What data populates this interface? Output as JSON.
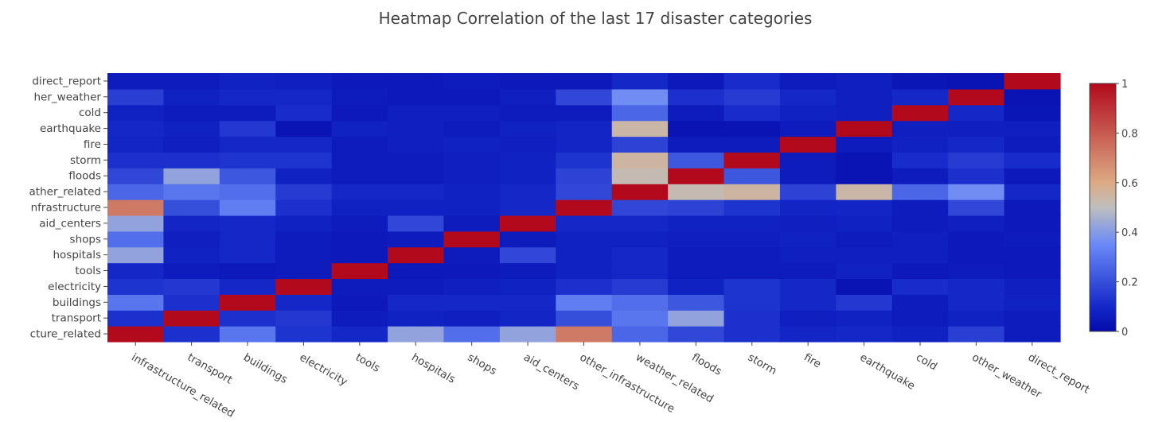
{
  "chart_data": {
    "type": "heatmap",
    "title": "Heatmap Correlation of the last 17 disaster categories",
    "x_categories": [
      "infrastructure_related",
      "transport",
      "buildings",
      "electricity",
      "tools",
      "hospitals",
      "shops",
      "aid_centers",
      "other_infrastructure",
      "weather_related",
      "floods",
      "storm",
      "fire",
      "earthquake",
      "cold",
      "other_weather",
      "direct_report"
    ],
    "y_categories": [
      "infrastructure_related",
      "transport",
      "buildings",
      "electricity",
      "tools",
      "hospitals",
      "shops",
      "aid_centers",
      "other_infrastructure",
      "weather_related",
      "floods",
      "storm",
      "fire",
      "earthquake",
      "cold",
      "other_weather",
      "direct_report"
    ],
    "y_tick_labels": [
      "cture_related",
      "transport",
      "buildings",
      "electricity",
      "tools",
      "hospitals",
      "shops",
      "aid_centers",
      "nfrastructure",
      "ather_related",
      "floods",
      "storm",
      "fire",
      "earthquake",
      "cold",
      "her_weather",
      "direct_report"
    ],
    "z": [
      [
        1.0,
        0.12,
        0.3,
        0.13,
        0.1,
        0.42,
        0.28,
        0.42,
        0.72,
        0.26,
        0.18,
        0.12,
        0.09,
        0.1,
        0.08,
        0.16,
        0.06
      ],
      [
        0.12,
        1.0,
        0.12,
        0.14,
        0.06,
        0.08,
        0.07,
        0.09,
        0.2,
        0.3,
        0.42,
        0.12,
        0.07,
        0.08,
        0.06,
        0.08,
        0.06
      ],
      [
        0.3,
        0.12,
        1.0,
        0.1,
        0.05,
        0.1,
        0.1,
        0.1,
        0.32,
        0.28,
        0.22,
        0.13,
        0.1,
        0.14,
        0.06,
        0.1,
        0.08
      ],
      [
        0.13,
        0.14,
        0.1,
        1.0,
        0.06,
        0.06,
        0.07,
        0.08,
        0.12,
        0.15,
        0.08,
        0.13,
        0.1,
        0.03,
        0.11,
        0.1,
        0.07
      ],
      [
        0.1,
        0.06,
        0.05,
        0.06,
        1.0,
        0.05,
        0.05,
        0.06,
        0.08,
        0.1,
        0.06,
        0.06,
        0.06,
        0.08,
        0.05,
        0.06,
        0.05
      ],
      [
        0.42,
        0.08,
        0.1,
        0.06,
        0.05,
        1.0,
        0.06,
        0.18,
        0.08,
        0.1,
        0.06,
        0.06,
        0.07,
        0.07,
        0.07,
        0.05,
        0.05
      ],
      [
        0.28,
        0.07,
        0.1,
        0.06,
        0.05,
        0.06,
        1.0,
        0.06,
        0.08,
        0.08,
        0.07,
        0.07,
        0.08,
        0.06,
        0.07,
        0.05,
        0.06
      ],
      [
        0.42,
        0.09,
        0.1,
        0.08,
        0.06,
        0.18,
        0.06,
        1.0,
        0.1,
        0.1,
        0.08,
        0.08,
        0.07,
        0.08,
        0.06,
        0.07,
        0.05
      ],
      [
        0.72,
        0.2,
        0.32,
        0.12,
        0.08,
        0.08,
        0.08,
        0.1,
        1.0,
        0.18,
        0.17,
        0.13,
        0.09,
        0.09,
        0.06,
        0.18,
        0.05
      ],
      [
        0.26,
        0.3,
        0.28,
        0.15,
        0.1,
        0.1,
        0.08,
        0.1,
        0.18,
        1.0,
        0.52,
        0.55,
        0.17,
        0.54,
        0.26,
        0.36,
        0.1
      ],
      [
        0.18,
        0.42,
        0.22,
        0.08,
        0.06,
        0.06,
        0.07,
        0.08,
        0.17,
        0.52,
        1.0,
        0.22,
        0.06,
        0.03,
        0.06,
        0.12,
        0.05
      ],
      [
        0.12,
        0.12,
        0.13,
        0.13,
        0.06,
        0.06,
        0.07,
        0.08,
        0.13,
        0.55,
        0.22,
        1.0,
        0.06,
        0.03,
        0.11,
        0.15,
        0.11
      ],
      [
        0.09,
        0.07,
        0.1,
        0.1,
        0.06,
        0.07,
        0.08,
        0.07,
        0.09,
        0.17,
        0.06,
        0.06,
        1.0,
        0.06,
        0.08,
        0.1,
        0.06
      ],
      [
        0.1,
        0.08,
        0.14,
        0.03,
        0.08,
        0.07,
        0.06,
        0.08,
        0.09,
        0.54,
        0.03,
        0.03,
        0.06,
        1.0,
        0.07,
        0.07,
        0.07
      ],
      [
        0.08,
        0.06,
        0.06,
        0.11,
        0.05,
        0.07,
        0.07,
        0.06,
        0.06,
        0.26,
        0.06,
        0.11,
        0.08,
        0.07,
        1.0,
        0.1,
        0.04
      ],
      [
        0.16,
        0.08,
        0.1,
        0.1,
        0.06,
        0.05,
        0.05,
        0.07,
        0.18,
        0.36,
        0.12,
        0.15,
        0.1,
        0.07,
        0.1,
        1.0,
        0.03
      ],
      [
        0.06,
        0.06,
        0.08,
        0.07,
        0.05,
        0.05,
        0.06,
        0.05,
        0.05,
        0.1,
        0.05,
        0.11,
        0.06,
        0.07,
        0.04,
        0.03,
        1.0
      ]
    ],
    "zmin": 0,
    "zmax": 1,
    "colorscale_name": "RdBu reversed (coolwarm)",
    "colorbar_ticks": [
      "0",
      "0.2",
      "0.4",
      "0.6",
      "0.8",
      "1"
    ]
  }
}
